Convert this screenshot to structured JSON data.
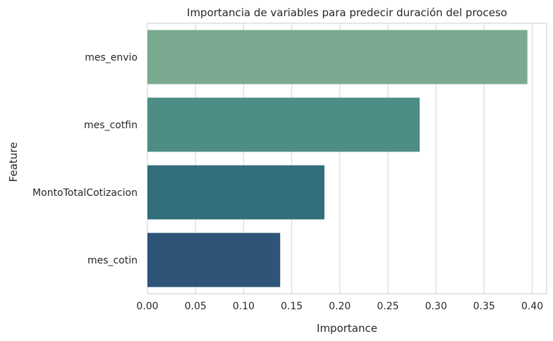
{
  "chart_data": {
    "type": "bar",
    "orientation": "horizontal",
    "title": "Importancia de variables para predecir duración del proceso",
    "xlabel": "Importance",
    "ylabel": "Feature",
    "categories": [
      "mes_envio",
      "mes_cotfin",
      "MontoTotalCotizacion",
      "mes_cotin"
    ],
    "values": [
      0.395,
      0.283,
      0.184,
      0.138
    ],
    "colors": [
      "#79aa8f",
      "#4e8d86",
      "#336e7d",
      "#2f5478"
    ],
    "xlim": [
      0,
      0.415
    ],
    "xticks": [
      "0.00",
      "0.05",
      "0.10",
      "0.15",
      "0.20",
      "0.25",
      "0.30",
      "0.35",
      "0.40"
    ],
    "grid": true
  }
}
